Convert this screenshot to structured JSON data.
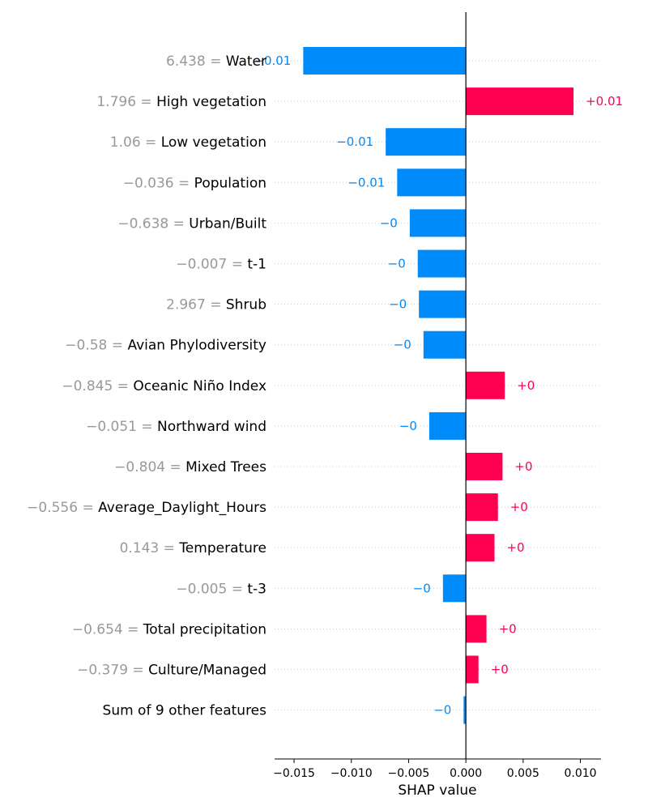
{
  "chart_data": {
    "type": "bar",
    "orientation": "horizontal",
    "xlabel": "SHAP value",
    "xlim": [
      -0.0167,
      0.0118
    ],
    "grid": "dotted horizontal row guides",
    "colors": {
      "positive": "#ff0051",
      "negative": "#008bfb"
    },
    "x_ticks": [
      {
        "value": -0.015,
        "label": "−0.015"
      },
      {
        "value": -0.01,
        "label": "−0.010"
      },
      {
        "value": -0.005,
        "label": "−0.005"
      },
      {
        "value": 0.0,
        "label": "0.000"
      },
      {
        "value": 0.005,
        "label": "0.005"
      },
      {
        "value": 0.01,
        "label": "0.010"
      }
    ],
    "features": [
      {
        "feature_value": "6.438 = ",
        "name": "Water",
        "shap": -0.0142,
        "label": "−0.01"
      },
      {
        "feature_value": "1.796 = ",
        "name": "High vegetation",
        "shap": 0.0094,
        "label": "+0.01"
      },
      {
        "feature_value": "1.06 = ",
        "name": "Low vegetation",
        "shap": -0.007,
        "label": "−0.01"
      },
      {
        "feature_value": "−0.036 = ",
        "name": "Population",
        "shap": -0.006,
        "label": "−0.01"
      },
      {
        "feature_value": "−0.638 = ",
        "name": "Urban/Built",
        "shap": -0.0049,
        "label": "−0"
      },
      {
        "feature_value": "−0.007 = ",
        "name": "t-1",
        "shap": -0.0042,
        "label": "−0"
      },
      {
        "feature_value": "2.967 = ",
        "name": "Shrub",
        "shap": -0.0041,
        "label": "−0"
      },
      {
        "feature_value": "−0.58 = ",
        "name": "Avian Phylodiversity",
        "shap": -0.0037,
        "label": "−0"
      },
      {
        "feature_value": "−0.845 = ",
        "name": "Oceanic Niño Index",
        "shap": 0.0034,
        "label": "+0"
      },
      {
        "feature_value": "−0.051 = ",
        "name": "Northward wind",
        "shap": -0.0032,
        "label": "−0"
      },
      {
        "feature_value": "−0.804 = ",
        "name": "Mixed Trees",
        "shap": 0.0032,
        "label": "+0"
      },
      {
        "feature_value": "−0.556 = ",
        "name": "Average_Daylight_Hours",
        "shap": 0.0028,
        "label": "+0"
      },
      {
        "feature_value": "0.143 = ",
        "name": "Temperature",
        "shap": 0.0025,
        "label": "+0"
      },
      {
        "feature_value": "−0.005 = ",
        "name": "t-3",
        "shap": -0.002,
        "label": "−0"
      },
      {
        "feature_value": "−0.654 = ",
        "name": "Total precipitation",
        "shap": 0.0018,
        "label": "+0"
      },
      {
        "feature_value": "−0.379 = ",
        "name": "Culture/Managed",
        "shap": 0.0011,
        "label": "+0"
      },
      {
        "feature_value": "",
        "name": "Sum of 9 other features",
        "shap": -0.0002,
        "label": "−0"
      }
    ]
  }
}
